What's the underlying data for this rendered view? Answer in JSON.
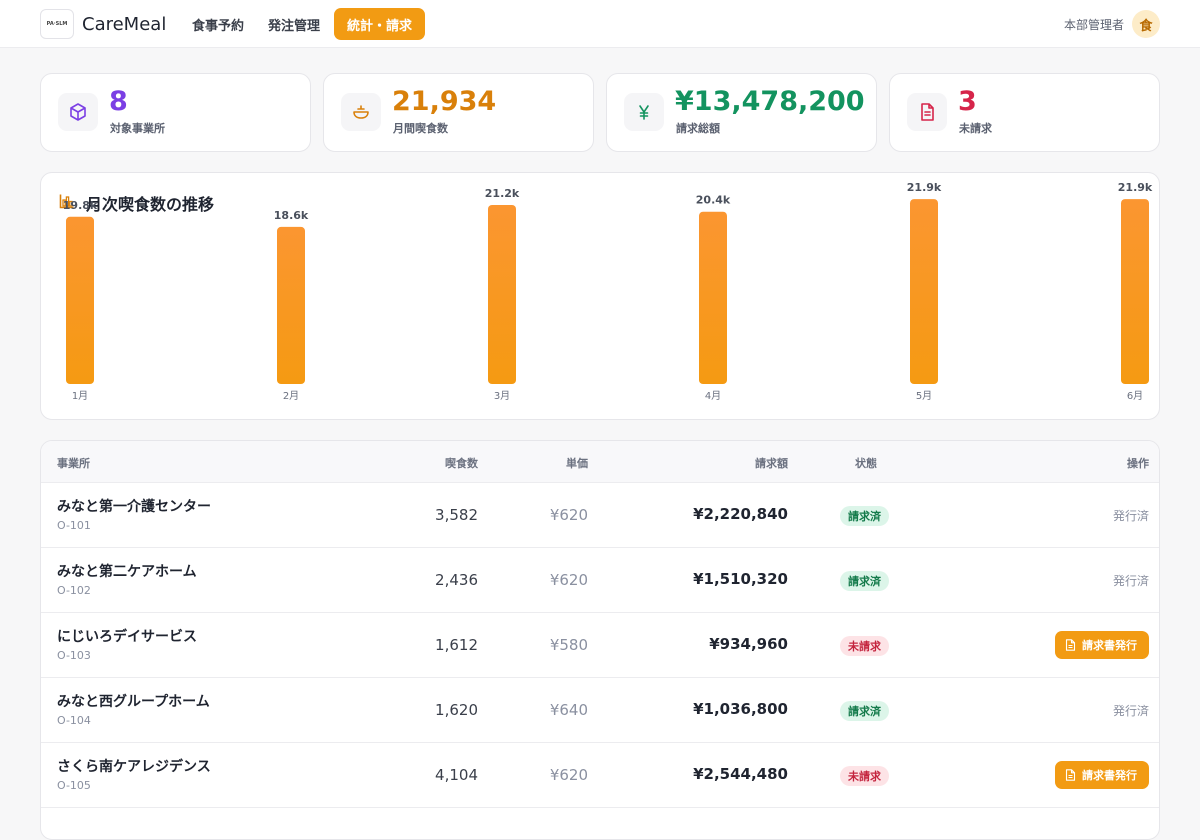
{
  "app": {
    "logo_text": "PA·SLM",
    "brand_name": "CareMeal"
  },
  "nav": {
    "items": [
      {
        "label": "食事予約",
        "active": false
      },
      {
        "label": "発注管理",
        "active": false
      },
      {
        "label": "統計・請求",
        "active": true
      }
    ]
  },
  "user": {
    "name": "本部管理者",
    "avatar": "食"
  },
  "stats": [
    {
      "value": "8",
      "label": "対象事業所",
      "color": "#7b3fe4",
      "icon": "cube-icon"
    },
    {
      "value": "21,934",
      "label": "月間喫食数",
      "color": "#d9800a",
      "icon": "bowl-icon"
    },
    {
      "value": "¥13,478,200",
      "label": "請求総額",
      "color": "#13935f",
      "icon": "yen-icon"
    },
    {
      "value": "3",
      "label": "未請求",
      "color": "#d6254a",
      "icon": "document-icon"
    }
  ],
  "chart": {
    "title": "月次喫食数の推移",
    "icon": "bar-chart-icon",
    "bar_color": "#f7931e"
  },
  "chart_data": {
    "type": "bar",
    "title": "月次喫食数の推移",
    "categories": [
      "1月",
      "2月",
      "3月",
      "4月",
      "5月",
      "6月"
    ],
    "values": [
      19800,
      18600,
      21200,
      20400,
      21900,
      21900
    ],
    "value_labels": [
      "19.8k",
      "18.6k",
      "21.2k",
      "20.4k",
      "21.9k",
      "21.9k"
    ],
    "xlabel": "",
    "ylabel": "",
    "grid": false
  },
  "table": {
    "headers": {
      "office": "事業所",
      "meals": "喫食数",
      "price": "単価",
      "amount": "請求額",
      "status": "状態",
      "action": "操作"
    },
    "rows": [
      {
        "name": "みなと第一介護センター",
        "code": "O-101",
        "meals": "3,582",
        "price": "¥620",
        "amount": "¥2,220,840",
        "status": "請求済",
        "state": "done",
        "action": "発行済"
      },
      {
        "name": "みなと第二ケアホーム",
        "code": "O-102",
        "meals": "2,436",
        "price": "¥620",
        "amount": "¥1,510,320",
        "status": "請求済",
        "state": "done",
        "action": "発行済"
      },
      {
        "name": "にじいろデイサービス",
        "code": "O-103",
        "meals": "1,612",
        "price": "¥580",
        "amount": "¥934,960",
        "status": "未請求",
        "state": "todo",
        "action": "請求書発行"
      },
      {
        "name": "みなと西グループホーム",
        "code": "O-104",
        "meals": "1,620",
        "price": "¥640",
        "amount": "¥1,036,800",
        "status": "請求済",
        "state": "done",
        "action": "発行済"
      },
      {
        "name": "さくら南ケアレジデンス",
        "code": "O-105",
        "meals": "4,104",
        "price": "¥620",
        "amount": "¥2,544,480",
        "status": "未請求",
        "state": "todo",
        "action": "請求書発行"
      }
    ]
  }
}
